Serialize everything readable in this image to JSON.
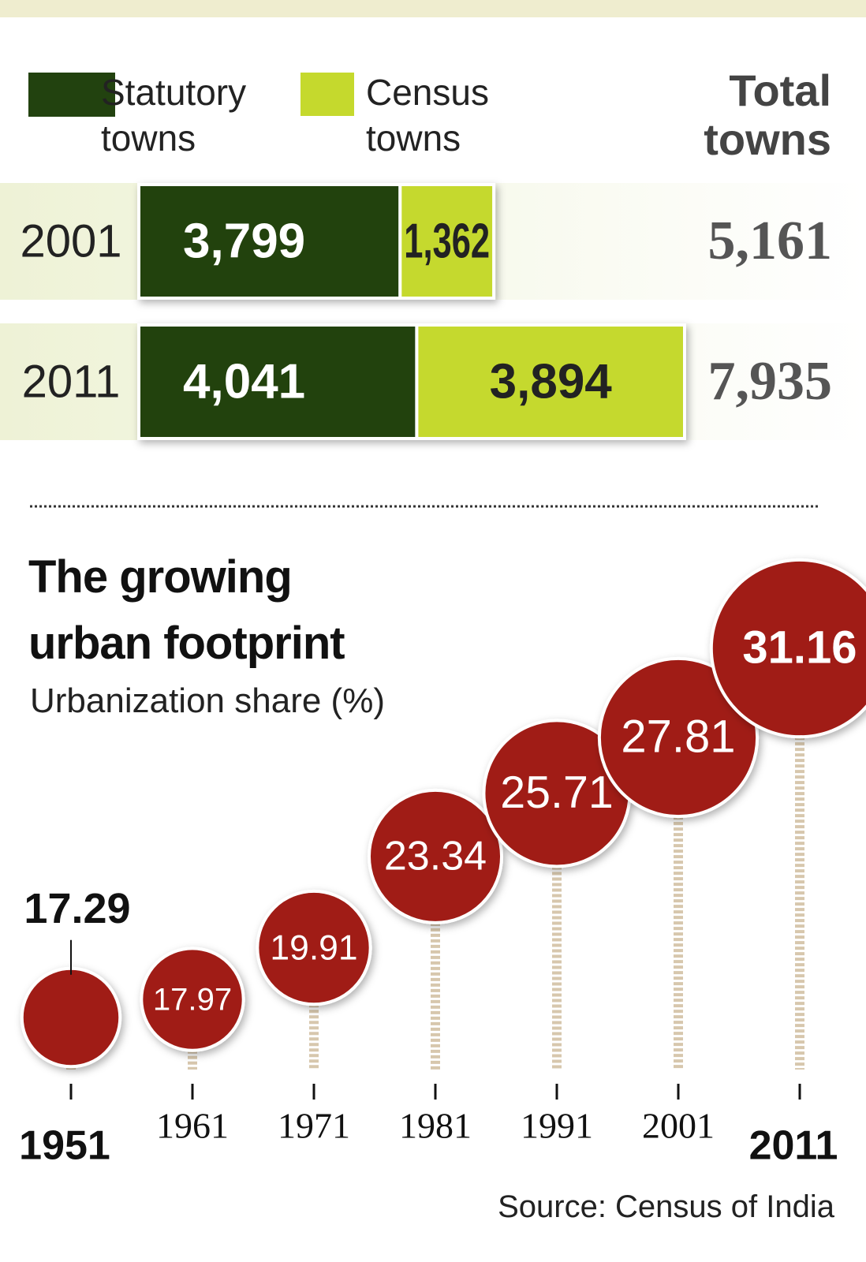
{
  "chart_data": [
    {
      "type": "stacked-bar",
      "categories": [
        "2001",
        "2011"
      ],
      "series": [
        {
          "name": "Statutory towns",
          "color": "#22420f",
          "values": [
            3799,
            4041
          ],
          "value_labels": [
            "3,799",
            "4,041"
          ]
        },
        {
          "name": "Census towns",
          "color": "#c5d92d",
          "values": [
            1362,
            3894
          ],
          "value_labels": [
            "1,362",
            "3,894"
          ]
        }
      ],
      "total_label": "Total towns",
      "totals": [
        5161,
        7935
      ],
      "total_labels": [
        "5,161",
        "7,935"
      ]
    },
    {
      "type": "bubble",
      "title": "The growing urban footprint",
      "subtitle": "Urbanization share (%)",
      "categories": [
        "1951",
        "1961",
        "1971",
        "1981",
        "1991",
        "2001",
        "2011"
      ],
      "values": [
        17.29,
        17.97,
        19.91,
        23.34,
        25.71,
        27.81,
        31.16
      ],
      "color": "#a01d14",
      "source": "Source: Census of India"
    }
  ]
}
